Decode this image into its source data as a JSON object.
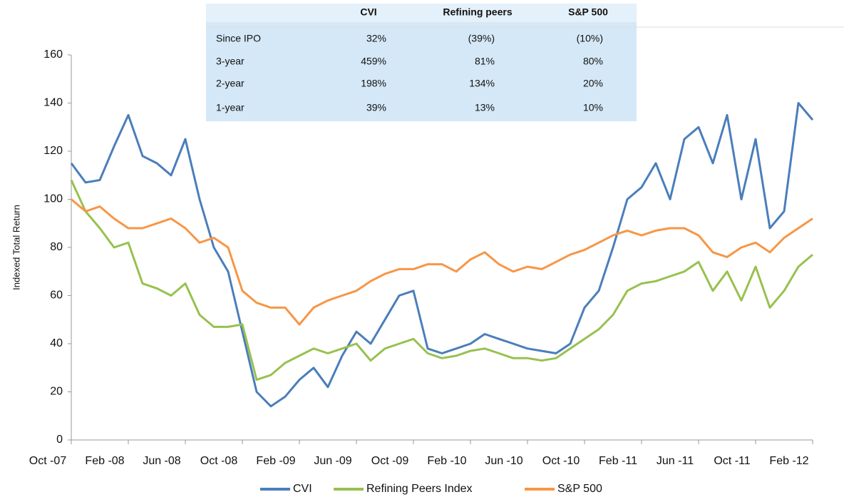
{
  "chart_data": {
    "type": "line",
    "y_label": "Indexed Total Return",
    "categories": [
      "Oct -07",
      null,
      null,
      null,
      "Feb -08",
      null,
      null,
      null,
      "Jun -08",
      null,
      null,
      null,
      "Oct -08",
      null,
      null,
      null,
      "Feb -09",
      null,
      null,
      null,
      "Jun -09",
      null,
      null,
      null,
      "Oct -09",
      null,
      null,
      null,
      "Feb -10",
      null,
      null,
      null,
      "Jun -10",
      null,
      null,
      null,
      "Oct -10",
      null,
      null,
      null,
      "Feb -11",
      null,
      null,
      null,
      "Jun -11",
      null,
      null,
      null,
      "Oct -11",
      null,
      null,
      null,
      "Feb -12"
    ],
    "series": [
      {
        "name": "CVI",
        "color": "#4a7ebb",
        "values": [
          115,
          107,
          108,
          122,
          135,
          118,
          115,
          110,
          125,
          100,
          80,
          70,
          45,
          20,
          14,
          18,
          25,
          30,
          22,
          35,
          45,
          40,
          50,
          60,
          62,
          38,
          36,
          38,
          40,
          44,
          42,
          40,
          38,
          37,
          36,
          40,
          55,
          62,
          80,
          100,
          105,
          115,
          100,
          125,
          130,
          115,
          135,
          100,
          125,
          88,
          95,
          140,
          133
        ]
      },
      {
        "name": "Refining Peers Index",
        "color": "#98c14f",
        "values": [
          108,
          95,
          88,
          80,
          82,
          65,
          63,
          60,
          65,
          52,
          47,
          47,
          48,
          25,
          27,
          32,
          35,
          38,
          36,
          38,
          40,
          33,
          38,
          40,
          42,
          36,
          34,
          35,
          37,
          38,
          36,
          34,
          34,
          33,
          34,
          38,
          42,
          46,
          52,
          62,
          65,
          66,
          68,
          70,
          74,
          62,
          70,
          58,
          72,
          55,
          62,
          72,
          77
        ]
      },
      {
        "name": "S&P 500",
        "color": "#f79646",
        "values": [
          100,
          95,
          97,
          92,
          88,
          88,
          90,
          92,
          88,
          82,
          84,
          80,
          62,
          57,
          55,
          55,
          48,
          55,
          58,
          60,
          62,
          66,
          69,
          71,
          71,
          73,
          73,
          70,
          75,
          78,
          73,
          70,
          72,
          71,
          74,
          77,
          79,
          82,
          85,
          87,
          85,
          87,
          88,
          88,
          85,
          78,
          76,
          80,
          82,
          78,
          84,
          88,
          92
        ]
      }
    ],
    "ylim": [
      0,
      160
    ],
    "yticks": [
      0,
      20,
      40,
      60,
      80,
      100,
      120,
      140,
      160
    ],
    "grid": false,
    "legend": "bottom"
  },
  "table": {
    "header": [
      "CVI",
      "Refining peers",
      "S&P 500"
    ],
    "rows": [
      [
        "Since IPO",
        "32%",
        "(39%)",
        "(10%)"
      ],
      [
        "3-year",
        "459%",
        "81%",
        "80%"
      ],
      [
        "2-year",
        "198%",
        "134%",
        "20%"
      ],
      [
        "1-year",
        "39%",
        "13%",
        "10%"
      ]
    ]
  }
}
